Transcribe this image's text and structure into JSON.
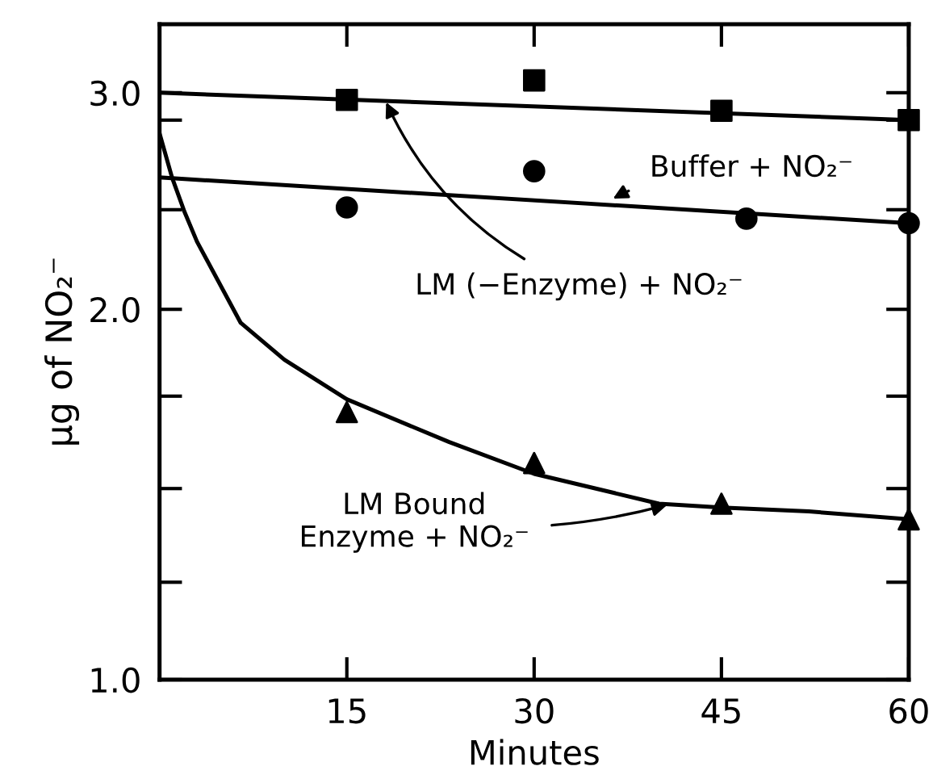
{
  "chart_data": {
    "type": "scatter",
    "xlabel": "Minutes",
    "ylabel": "μg of NO₂⁻",
    "log": "y",
    "xlim": [
      0,
      60
    ],
    "xticks": [
      15,
      30,
      45,
      60
    ],
    "ylim": [
      1.0,
      3.41
    ],
    "yticks": [
      {
        "value": 1.0,
        "label": "1.0"
      },
      {
        "value": 1.2,
        "label": null
      },
      {
        "value": 1.43,
        "label": null
      },
      {
        "value": 1.7,
        "label": null
      },
      {
        "value": 2.0,
        "label": "2.0"
      },
      {
        "value": 2.41,
        "label": null
      },
      {
        "value": 2.85,
        "label": null
      },
      {
        "value": 3.0,
        "label": "3.0"
      }
    ],
    "grid": false,
    "series": [
      {
        "marker": "square",
        "color": "#000000",
        "x": [
          15,
          30,
          45,
          60
        ],
        "values": [
          2.96,
          3.07,
          2.9,
          2.85
        ]
      },
      {
        "marker": "circle",
        "color": "#000000",
        "x": [
          15,
          30,
          47,
          60
        ],
        "values": [
          2.42,
          2.59,
          2.37,
          2.35
        ]
      },
      {
        "marker": "triangle",
        "color": "#000000",
        "x": [
          15,
          30,
          45,
          60
        ],
        "values": [
          1.65,
          1.5,
          1.39,
          1.35
        ]
      },
      {
        "type": "line",
        "color": "#000000",
        "x": [
          0,
          60
        ],
        "values": [
          3.0,
          2.85
        ]
      },
      {
        "type": "line",
        "color": "#000000",
        "x": [
          0,
          60
        ],
        "values": [
          2.56,
          2.35
        ]
      },
      {
        "type": "line",
        "color": "#000000",
        "x": [
          0,
          1,
          2,
          3,
          6.5,
          10,
          15,
          23.2,
          30,
          40,
          45,
          52,
          60
        ],
        "values": [
          2.78,
          2.56,
          2.4,
          2.27,
          1.95,
          1.82,
          1.69,
          1.56,
          1.47,
          1.39,
          1.38,
          1.37,
          1.35
        ]
      }
    ],
    "annotations": [
      {
        "text": "Buffer + NO₂⁻",
        "x": 36,
        "y": 2.45
      },
      {
        "text": "LM (−Enzyme) + NO₂⁻",
        "x": 18,
        "y": 2.97
      },
      {
        "text": "LM Bound\nEnzyme + NO₂⁻",
        "x": 41,
        "y": 1.39
      }
    ]
  }
}
